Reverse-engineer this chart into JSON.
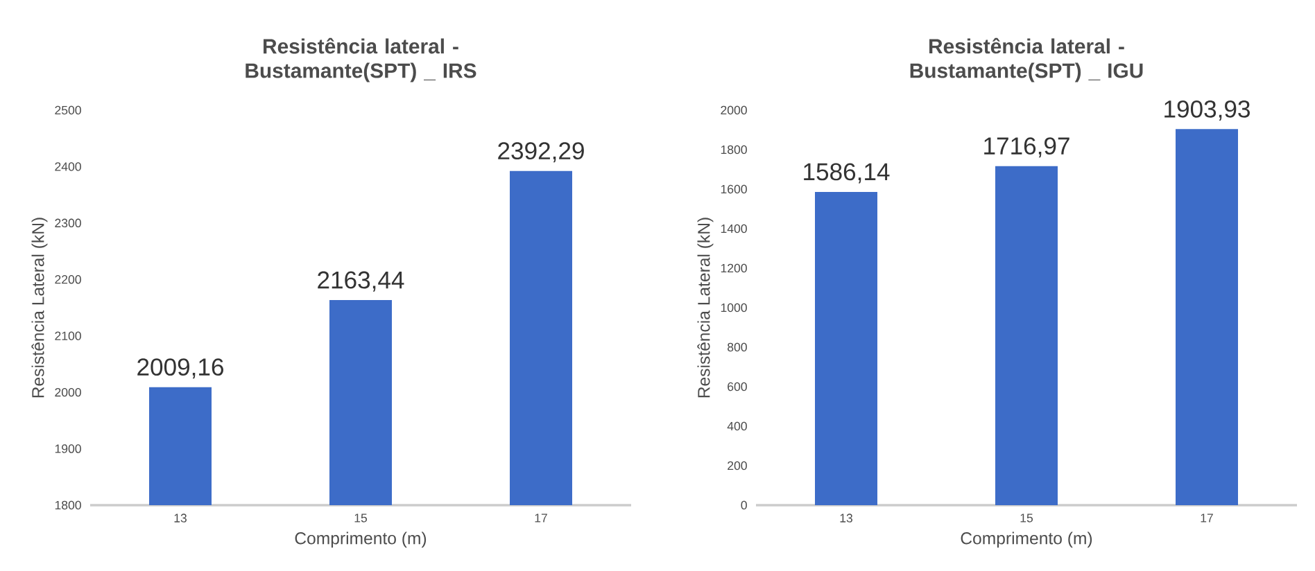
{
  "chart_data": [
    {
      "type": "bar",
      "title": "Resistência lateral - Bustamante(SPT) _ IRS",
      "xlabel": "Comprimento (m)",
      "ylabel": "Resistência Lateral (kN)",
      "categories": [
        "13",
        "15",
        "17"
      ],
      "values": [
        2009.16,
        2163.44,
        2392.29
      ],
      "value_labels": [
        "2009,16",
        "2163,44",
        "2392,29"
      ],
      "color": "#3d6cc8",
      "ylim": [
        1800,
        2500
      ],
      "yticks": [
        1800,
        1900,
        2000,
        2100,
        2200,
        2300,
        2400,
        2500
      ]
    },
    {
      "type": "bar",
      "title": "Resistência lateral - Bustamante(SPT) _ IGU",
      "xlabel": "Comprimento (m)",
      "ylabel": "Resistência Lateral (kN)",
      "categories": [
        "13",
        "15",
        "17"
      ],
      "values": [
        1586.14,
        1716.97,
        1903.93
      ],
      "value_labels": [
        "1586,14",
        "1716,97",
        "1903,93"
      ],
      "color": "#3d6cc8",
      "ylim": [
        0,
        2000
      ],
      "yticks": [
        0,
        200,
        400,
        600,
        800,
        1000,
        1200,
        1400,
        1600,
        1800,
        2000
      ]
    }
  ]
}
